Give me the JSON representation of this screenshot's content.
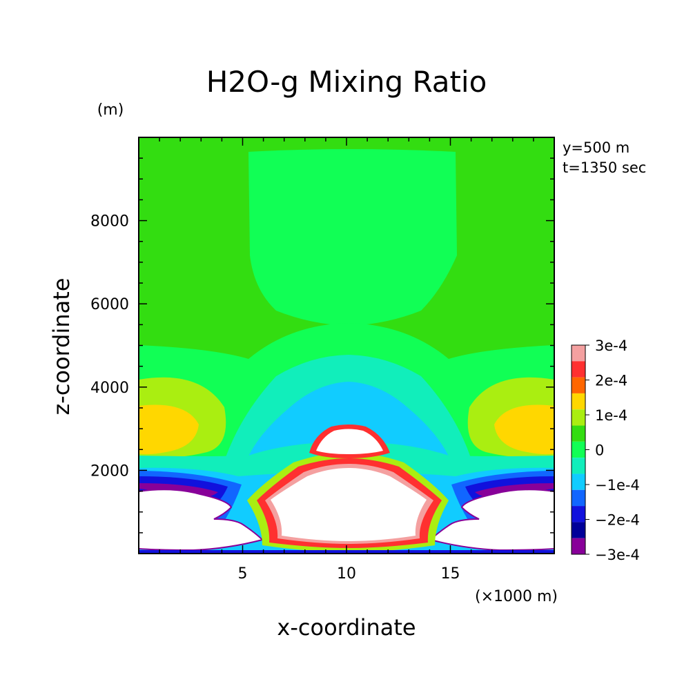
{
  "chart_data": {
    "type": "contour",
    "title": "H2O-g Mixing Ratio",
    "xlabel": "x-coordinate",
    "ylabel": "z-coordinate",
    "x_unit": "(×1000 m)",
    "y_unit": "(m)",
    "xlim": [
      0,
      20
    ],
    "ylim": [
      0,
      10000
    ],
    "x_ticks": [
      5,
      10,
      15
    ],
    "y_ticks": [
      2000,
      4000,
      6000,
      8000
    ],
    "info": [
      "y=500 m",
      "t=1350 sec"
    ],
    "colorbar": {
      "labels": [
        "3e-4",
        "2e-4",
        "1e-4",
        "0",
        "−1e-4",
        "−2e-4",
        "−3e-4"
      ],
      "colors": [
        "#f4a0a0",
        "#ff3030",
        "#ff6600",
        "#ffd700",
        "#aaee11",
        "#33dd11",
        "#11ff55",
        "#11eebb",
        "#11ccff",
        "#1166ff",
        "#1111dd",
        "#000099",
        "#880099"
      ]
    }
  }
}
